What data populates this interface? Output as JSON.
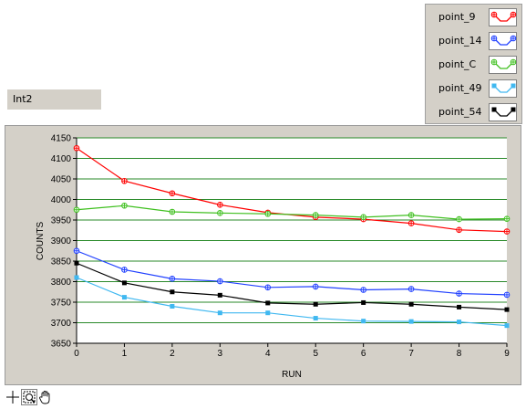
{
  "indicator": {
    "label": "Int2"
  },
  "legend": [
    {
      "name": "point_9",
      "color": "#ff0000"
    },
    {
      "name": "point_14",
      "color": "#2040ff"
    },
    {
      "name": "point_C",
      "color": "#40c020"
    },
    {
      "name": "point_49",
      "color": "#40b8f0"
    },
    {
      "name": "point_54",
      "color": "#000000"
    }
  ],
  "chart_data": {
    "type": "line",
    "xlabel": "RUN",
    "ylabel": "COUNTS",
    "xlim": [
      0,
      9
    ],
    "ylim": [
      3650,
      4150
    ],
    "x": [
      0,
      1,
      2,
      3,
      4,
      5,
      6,
      7,
      8,
      9
    ],
    "x_ticks": [
      0,
      1,
      2,
      3,
      4,
      5,
      6,
      7,
      8,
      9
    ],
    "y_ticks": [
      3650,
      3700,
      3750,
      3800,
      3850,
      3900,
      3950,
      4000,
      4050,
      4100,
      4150
    ],
    "grid": "horizontal, green",
    "legend_position": "top-right, outside plot",
    "series": [
      {
        "name": "point_9",
        "color": "#ff0000",
        "marker": "cross-circle",
        "values": [
          4125,
          4045,
          4015,
          3987,
          3968,
          3957,
          3952,
          3942,
          3926,
          3922
        ]
      },
      {
        "name": "point_14",
        "color": "#2040ff",
        "marker": "cross-circle",
        "values": [
          3875,
          3829,
          3807,
          3801,
          3786,
          3788,
          3780,
          3782,
          3771,
          3768
        ]
      },
      {
        "name": "point_C",
        "color": "#40c020",
        "marker": "cross-circle",
        "values": [
          3975,
          3985,
          3970,
          3967,
          3965,
          3962,
          3957,
          3962,
          3952,
          3953
        ]
      },
      {
        "name": "point_49",
        "color": "#40b8f0",
        "marker": "square",
        "values": [
          3810,
          3762,
          3740,
          3724,
          3724,
          3711,
          3704,
          3703,
          3702,
          3693
        ]
      },
      {
        "name": "point_54",
        "color": "#000000",
        "marker": "square",
        "values": [
          3845,
          3797,
          3775,
          3767,
          3748,
          3745,
          3749,
          3745,
          3738,
          3732
        ]
      }
    ]
  },
  "toolbar": [
    {
      "icon": "crosshair-cursor-icon"
    },
    {
      "icon": "zoom-icon"
    },
    {
      "icon": "pan-hand-icon"
    }
  ]
}
